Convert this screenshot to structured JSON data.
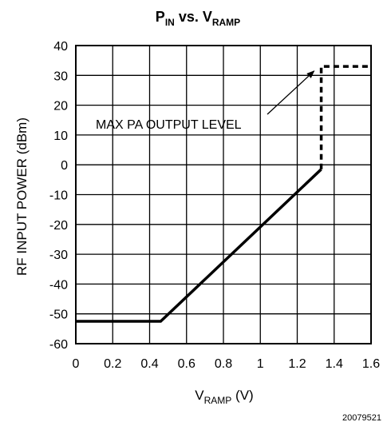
{
  "chart_data": {
    "type": "line",
    "title": {
      "main1": "P",
      "sub1": "IN",
      "mid": " vs. V",
      "sub2": "RAMP"
    },
    "xlabel": {
      "main": "V",
      "sub": "RAMP",
      "unit": " (V)"
    },
    "ylabel": "RF INPUT POWER (dBm)",
    "xlim": [
      0,
      1.6
    ],
    "ylim": [
      -60,
      40
    ],
    "x_ticks": [
      "0",
      "0.2",
      "0.4",
      "0.6",
      "0.8",
      "1",
      "1.2",
      "1.4",
      "1.6"
    ],
    "y_ticks": [
      "40",
      "30",
      "20",
      "10",
      "0",
      "-10",
      "-20",
      "-30",
      "-40",
      "-50",
      "-60"
    ],
    "grid": true,
    "series": [
      {
        "style": "solid",
        "x": [
          0,
          0.46,
          1.33
        ],
        "y": [
          -52.5,
          -52.5,
          -1.5
        ]
      },
      {
        "style": "dashed",
        "x": [
          1.33,
          1.33,
          1.6
        ],
        "y": [
          -1.5,
          33,
          33
        ]
      }
    ],
    "annotation": {
      "text": "MAX PA OUTPUT LEVEL",
      "arrow_to": [
        1.3,
        32
      ]
    },
    "figure_id": "20079521"
  }
}
